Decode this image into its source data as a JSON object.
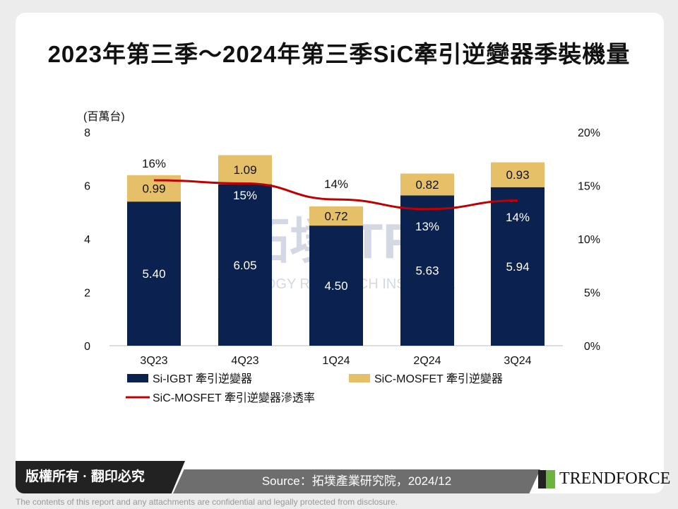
{
  "title": "2023年第三季～2024年第三季SiC牽引逆變器季裝機量",
  "watermark": "拓墣 TRi TOPOLOGY RESEARCH INSTITUTE",
  "chart_data": {
    "type": "bar",
    "stacked": true,
    "categories": [
      "3Q23",
      "4Q23",
      "1Q24",
      "2Q24",
      "3Q24"
    ],
    "ylabel": "(百萬台)",
    "ylim": [
      0,
      8
    ],
    "yticks": [
      "0",
      "2",
      "4",
      "6",
      "8"
    ],
    "y2lim": [
      0,
      20
    ],
    "y2ticks": [
      "0%",
      "5%",
      "10%",
      "15%",
      "20%"
    ],
    "series": [
      {
        "name": "Si-IGBT 牽引逆變器",
        "color": "#0b2150",
        "values": [
          5.4,
          6.05,
          4.5,
          5.63,
          5.94
        ],
        "labels": [
          "5.40",
          "6.05",
          "4.50",
          "5.63",
          "5.94"
        ]
      },
      {
        "name": "SiC-MOSFET 牽引逆變器",
        "color": "#e6bf69",
        "values": [
          0.99,
          1.09,
          0.72,
          0.82,
          0.93
        ],
        "labels": [
          "0.99",
          "1.09",
          "0.72",
          "0.82",
          "0.93"
        ]
      },
      {
        "name": "SiC-MOSFET 牽引逆變器滲透率",
        "type": "line",
        "axis": "right",
        "color": "#c00000",
        "values": [
          15.5,
          15.2,
          13.7,
          12.8,
          13.6
        ],
        "labels": [
          "16%",
          "15%",
          "14%",
          "13%",
          "14%"
        ]
      }
    ],
    "legend": "bottom"
  },
  "footer": {
    "copyright": "版權所有 · 翻印必究",
    "source": "Source：拓墣產業研究院，2024/12",
    "brand": "TRENDFORCE",
    "disclaimer": "The contents of this report and any attachments are confidential and legally protected from disclosure."
  }
}
